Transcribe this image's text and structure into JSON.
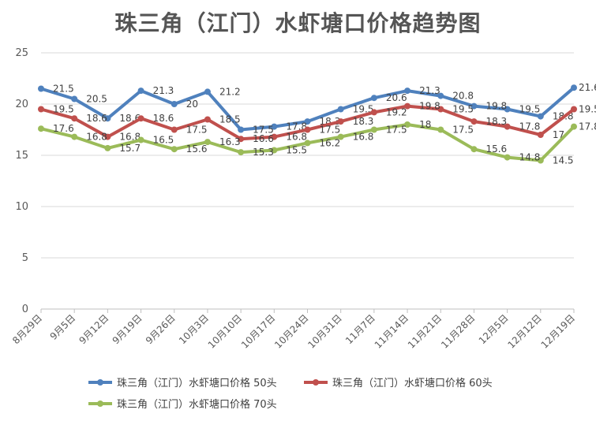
{
  "chart_data": {
    "type": "line",
    "title": "珠三角（江门）水虾塘口价格趋势图",
    "xlabel": "",
    "ylabel": "",
    "ylim": [
      0,
      25
    ],
    "yticks": [
      0,
      5,
      10,
      15,
      20,
      25
    ],
    "grid": "horizontal",
    "legend_position": "bottom",
    "categories": [
      "8月29日",
      "9月5日",
      "9月12日",
      "9月19日",
      "9月26日",
      "10月3日",
      "10月10日",
      "10月17日",
      "10月24日",
      "10月31日",
      "11月7日",
      "11月14日",
      "11月21日",
      "11月28日",
      "12月5日",
      "12月12日",
      "12月19日"
    ],
    "series": [
      {
        "name": "珠三角（江门）水虾塘口价格 50头",
        "color": "#4F81BD",
        "values": [
          21.5,
          20.5,
          18.6,
          21.3,
          20,
          21.2,
          17.5,
          17.8,
          18.3,
          19.5,
          20.6,
          21.3,
          20.8,
          19.8,
          19.5,
          18.8,
          21.6
        ],
        "labels": [
          "21.5",
          "20.5",
          "18.6",
          "21.3",
          "20",
          "21.2",
          "17.5",
          "17.8",
          "18.3",
          "19.5",
          "20.6",
          "21.3",
          "20.8",
          "19.8",
          "19.5",
          "18.8",
          "21.6"
        ]
      },
      {
        "name": "珠三角（江门）水虾塘口价格 60头",
        "color": "#C0504D",
        "values": [
          19.5,
          18.6,
          16.8,
          18.6,
          17.5,
          18.5,
          16.6,
          16.8,
          17.5,
          18.3,
          19.2,
          19.8,
          19.5,
          18.3,
          17.8,
          17,
          19.5
        ],
        "labels": [
          "19.5",
          "18.6",
          "16.8",
          "18.6",
          "17.5",
          "18.5",
          "16.6",
          "16.8",
          "17.5",
          "18.3",
          "19.2",
          "19.8",
          "19.5",
          "18.3",
          "17.8",
          "17",
          "19.5"
        ]
      },
      {
        "name": "珠三角（江门）水虾塘口价格 70头",
        "color": "#9BBB59",
        "values": [
          17.6,
          16.8,
          15.7,
          16.5,
          15.6,
          16.3,
          15.3,
          15.5,
          16.2,
          16.8,
          17.5,
          18,
          17.5,
          15.6,
          14.8,
          14.5,
          17.8
        ],
        "labels": [
          "17.6",
          "16.8",
          "15.7",
          "16.5",
          "15.6",
          "16.3",
          "15.3",
          "15.5",
          "16.2",
          "16.8",
          "17.5",
          "18",
          "17.5",
          "15.6",
          "14.8",
          "14.5",
          "17.8"
        ]
      }
    ]
  }
}
